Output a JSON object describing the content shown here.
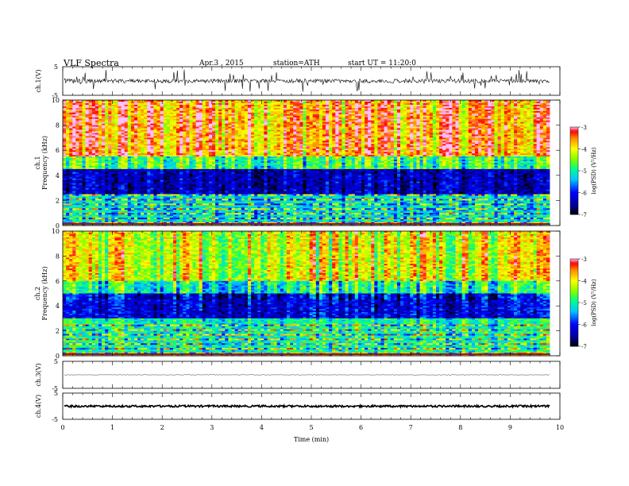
{
  "header": {
    "title": "VLF  Spectra",
    "date": "Apr.3  , 2015",
    "station": "station=ATH",
    "start": "start  UT  =    11:20:0"
  },
  "chart_data": [
    {
      "type": "line",
      "ylabel": "ch.1(V)",
      "xlim": [
        0,
        10
      ],
      "ylim": [
        -5,
        5
      ],
      "yticks": [
        "5",
        "-5"
      ],
      "description_values": {
        "baseline_approx": 0,
        "data_end_min": 9.8
      }
    },
    {
      "type": "heatmap",
      "ylabel": "ch.1\nFrequency (kHz)",
      "ylabel_lines": [
        "ch.1",
        "Frequency (kHz)"
      ],
      "xlim": [
        0,
        10
      ],
      "ylim": [
        0,
        10
      ],
      "yticks": [
        "0",
        "2",
        "4",
        "6",
        "8",
        "10"
      ],
      "colorbar": {
        "label": "log(PSD) (V²/Hz)",
        "range": [
          -7,
          -3
        ],
        "ticks": [
          "-3",
          "-4",
          "-5",
          "-6",
          "-7"
        ]
      },
      "bands_logPSD": [
        {
          "f_khz": [
            5.5,
            10
          ],
          "level": -3.6
        },
        {
          "f_khz": [
            4.5,
            5.5
          ],
          "level": -4.8
        },
        {
          "f_khz": [
            2.5,
            4.5
          ],
          "level": -6.4
        },
        {
          "f_khz": [
            0,
            2.5
          ],
          "level": -5.2
        }
      ]
    },
    {
      "type": "heatmap",
      "ylabel": "ch.2\nFrequency (kHz)",
      "ylabel_lines": [
        "ch.2",
        "Frequency (kHz)"
      ],
      "xlim": [
        0,
        10
      ],
      "ylim": [
        0,
        10
      ],
      "yticks": [
        "0",
        "2",
        "4",
        "6",
        "8",
        "10"
      ],
      "colorbar": {
        "label": "log(PSD) (V²/Hz)",
        "range": [
          -7,
          -3
        ],
        "ticks": [
          "-3",
          "-4",
          "-5",
          "-6",
          "-7"
        ]
      },
      "bands_logPSD": [
        {
          "f_khz": [
            6,
            10
          ],
          "level": -4.1
        },
        {
          "f_khz": [
            5,
            6
          ],
          "level": -5.0
        },
        {
          "f_khz": [
            3,
            5
          ],
          "level": -6.2
        },
        {
          "f_khz": [
            0,
            3
          ],
          "level": -5.0
        }
      ]
    },
    {
      "type": "line",
      "ylabel": "ch.3(V)",
      "xlim": [
        0,
        10
      ],
      "ylim": [
        -5,
        5
      ],
      "yticks": [
        "5",
        "-5"
      ],
      "description_values": {
        "baseline_approx": 0,
        "data_end_min": 9.8
      }
    },
    {
      "type": "line",
      "ylabel": "ch.4(V)",
      "xlim": [
        0,
        10
      ],
      "ylim": [
        -5,
        5
      ],
      "yticks": [
        "5",
        "-5"
      ],
      "xlabel": "Time (min)",
      "xticks": [
        "0",
        "1",
        "2",
        "3",
        "4",
        "5",
        "6",
        "7",
        "8",
        "9",
        "10"
      ],
      "description_values": {
        "baseline_approx": 0,
        "data_end_min": 9.8
      }
    }
  ]
}
